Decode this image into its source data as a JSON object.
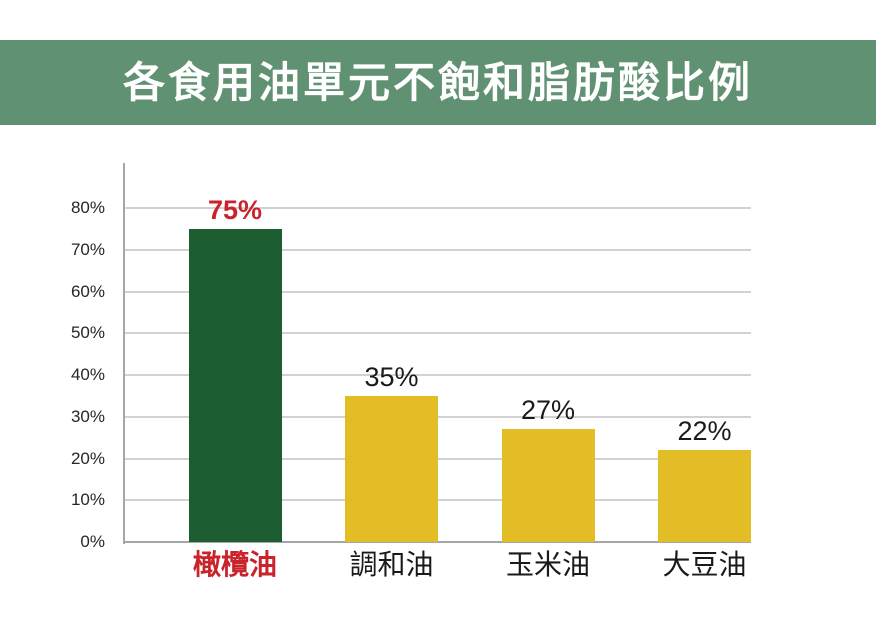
{
  "title": "各食用油單元不飽和脂肪酸比例",
  "colors": {
    "banner_green": "#5f9172",
    "olive_bar_green": "#1c5e32",
    "yellow_bar": "#e3bd25",
    "highlight_red": "#c9232b",
    "label_black": "#1a1a1a",
    "axis_gray": "#a6a6a6",
    "grid_gray": "#d2d2d2",
    "tick_label_gray": "#262626",
    "background": "#ffffff",
    "title_text": "#ffffff"
  },
  "chart_data": {
    "type": "bar",
    "title": "各食用油單元不飽和脂肪酸比例",
    "categories": [
      "橄欖油",
      "調和油",
      "玉米油",
      "大豆油"
    ],
    "values": [
      75,
      35,
      27,
      22
    ],
    "value_labels": [
      "75%",
      "35%",
      "27%",
      "22%"
    ],
    "bar_colors": [
      "#1c5e32",
      "#e3bd25",
      "#e3bd25",
      "#e3bd25"
    ],
    "label_colors": [
      "#c9232b",
      "#1a1a1a",
      "#1a1a1a",
      "#1a1a1a"
    ],
    "label_bold": [
      true,
      false,
      false,
      false
    ],
    "xlabel": "",
    "ylabel": "",
    "ylim": [
      0,
      80
    ],
    "ytick_step": 10,
    "ytick_labels": [
      "0%",
      "10%",
      "20%",
      "30%",
      "40%",
      "50%",
      "60%",
      "70%",
      "80%"
    ],
    "grid": true,
    "legend": "none",
    "highlight_category": "橄欖油"
  }
}
